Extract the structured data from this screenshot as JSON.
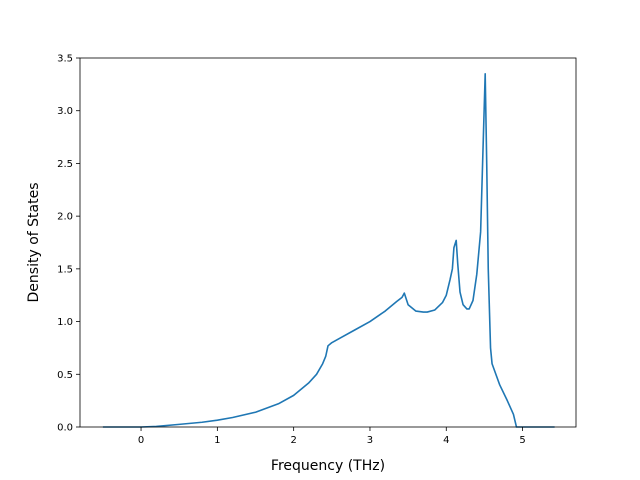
{
  "chart_data": {
    "type": "line",
    "title": "",
    "xlabel": "Frequency (THz)",
    "ylabel": "Density of States",
    "xlim": [
      -0.8,
      5.7
    ],
    "ylim": [
      0.0,
      3.5
    ],
    "xticks": [
      0,
      1,
      2,
      3,
      4,
      5
    ],
    "xtick_labels": [
      "0",
      "1",
      "2",
      "3",
      "4",
      "5"
    ],
    "yticks": [
      0.0,
      0.5,
      1.0,
      1.5,
      2.0,
      2.5,
      3.0,
      3.5
    ],
    "ytick_labels": [
      "0.0",
      "0.5",
      "1.0",
      "1.5",
      "2.0",
      "2.5",
      "3.0",
      "3.5"
    ],
    "grid": false,
    "line_color": "#1f77b4",
    "series": [
      {
        "x": [
          -0.5,
          0.0,
          0.2,
          0.5,
          0.8,
          1.0,
          1.2,
          1.5,
          1.8,
          2.0,
          2.2,
          2.3,
          2.38,
          2.42,
          2.45,
          2.5,
          2.6,
          2.8,
          3.0,
          3.2,
          3.35,
          3.42,
          3.45,
          3.5,
          3.6,
          3.7,
          3.75,
          3.85,
          3.95,
          4.0,
          4.05,
          4.08,
          4.1,
          4.13,
          4.15,
          4.18,
          4.22,
          4.27,
          4.3,
          4.35,
          4.4,
          4.45,
          4.48,
          4.51,
          4.53,
          4.55,
          4.58,
          4.6,
          4.7,
          4.8,
          4.88,
          4.92,
          5.0,
          5.2,
          5.42
        ],
        "y": [
          0.0,
          0.0,
          0.005,
          0.025,
          0.045,
          0.065,
          0.09,
          0.14,
          0.22,
          0.3,
          0.42,
          0.5,
          0.6,
          0.67,
          0.77,
          0.8,
          0.84,
          0.92,
          1.0,
          1.1,
          1.19,
          1.23,
          1.27,
          1.16,
          1.1,
          1.09,
          1.09,
          1.11,
          1.18,
          1.25,
          1.4,
          1.5,
          1.7,
          1.77,
          1.55,
          1.28,
          1.16,
          1.12,
          1.12,
          1.2,
          1.45,
          1.85,
          2.6,
          3.35,
          2.5,
          1.5,
          0.75,
          0.6,
          0.4,
          0.25,
          0.12,
          0.0,
          0.0,
          0.0,
          0.0
        ]
      }
    ]
  }
}
